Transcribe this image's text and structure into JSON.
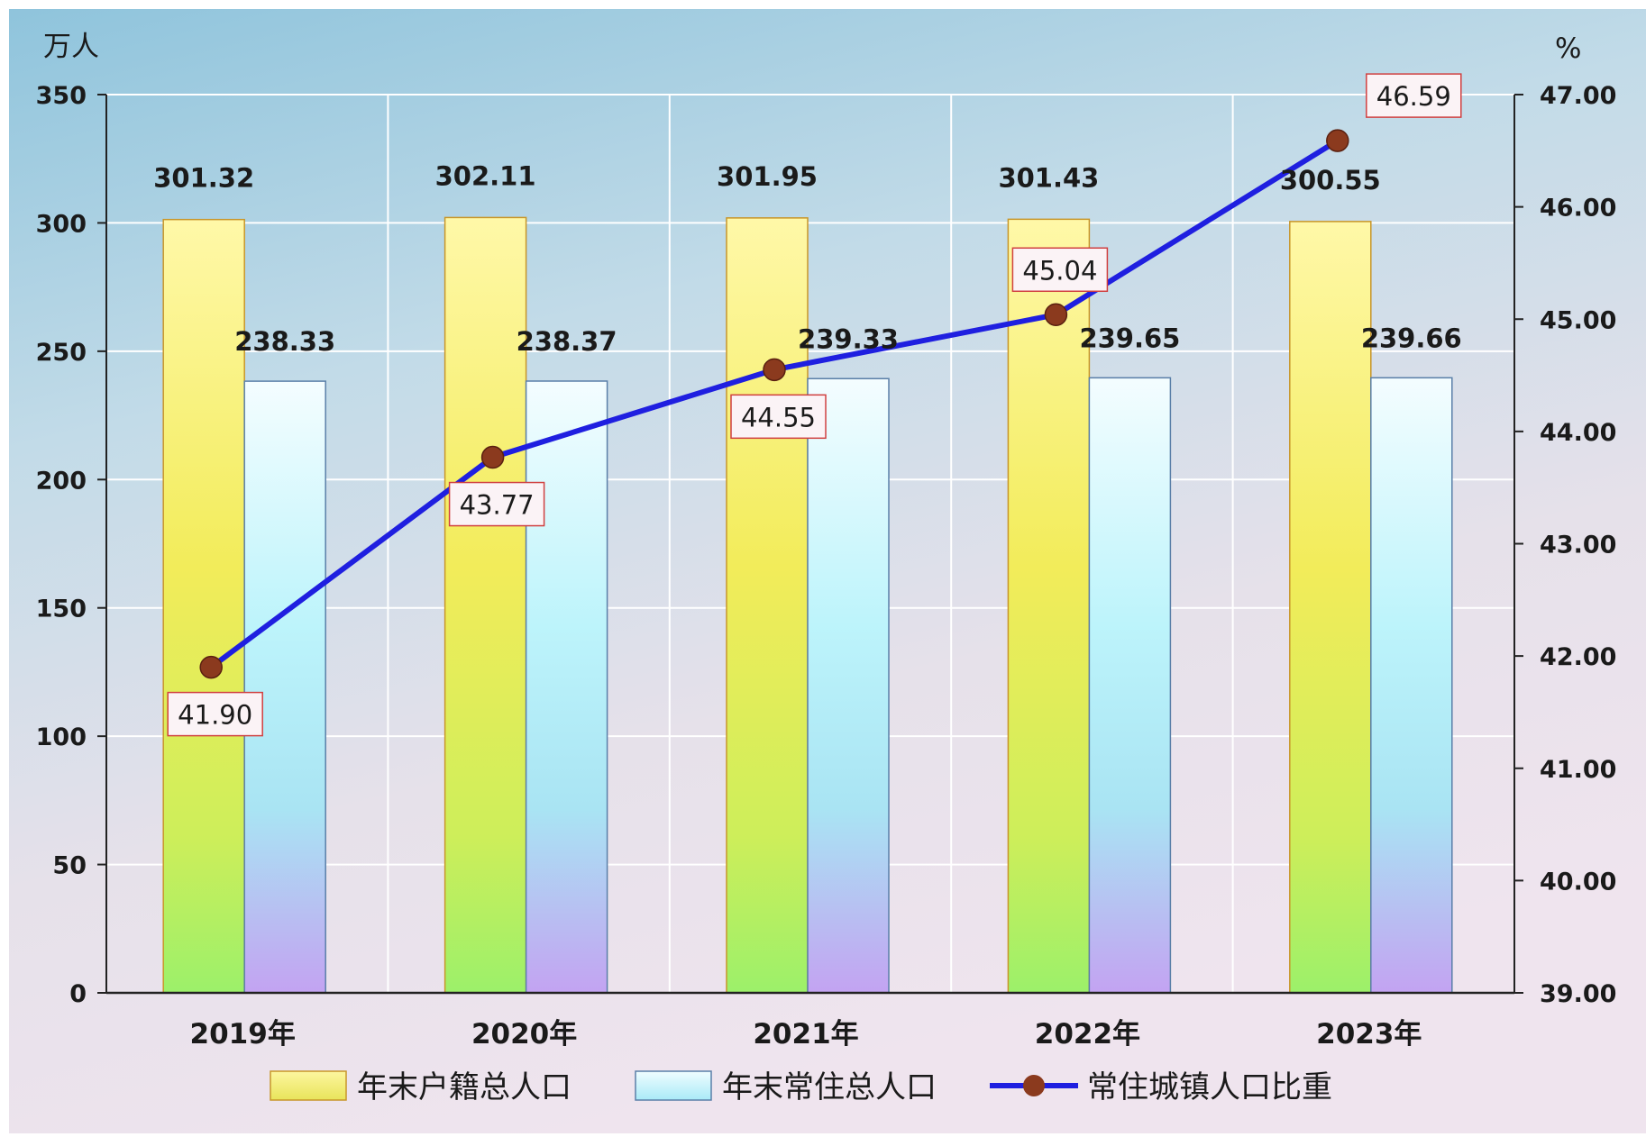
{
  "chart_data": {
    "type": "bar",
    "categories": [
      "2019年",
      "2020年",
      "2021年",
      "2022年",
      "2023年"
    ],
    "series": [
      {
        "name": "年末户籍总人口",
        "kind": "bar",
        "axis": "left",
        "values": [
          301.32,
          302.11,
          301.95,
          301.43,
          300.55
        ],
        "labels": [
          "301.32",
          "302.11",
          "301.95",
          "301.43",
          "300.55"
        ]
      },
      {
        "name": "年末常住总人口",
        "kind": "bar",
        "axis": "left",
        "values": [
          238.33,
          238.37,
          239.33,
          239.65,
          239.66
        ],
        "labels": [
          "238.33",
          "238.37",
          "239.33",
          "239.65",
          "239.66"
        ]
      },
      {
        "name": "常住城镇人口比重",
        "kind": "line",
        "axis": "right",
        "values": [
          41.9,
          43.77,
          44.55,
          45.04,
          46.59
        ],
        "labels": [
          "41.90",
          "43.77",
          "44.55",
          "45.04",
          "46.59"
        ]
      }
    ],
    "ylabel": "万人",
    "y2label": "%",
    "ylim": [
      0,
      350
    ],
    "y2lim": [
      39,
      47
    ],
    "yticks": [
      "0",
      "50",
      "100",
      "150",
      "200",
      "250",
      "300",
      "350"
    ],
    "y2ticks": [
      "39.00",
      "40.00",
      "41.00",
      "42.00",
      "43.00",
      "44.00",
      "45.00",
      "46.00",
      "47.00"
    ],
    "grid": true,
    "legend_position": "bottom"
  },
  "colors": {
    "line": "#1f1fe0",
    "marker": "#8b3a1e",
    "bar1_border": "#c8962a",
    "bar2_border": "#5a7fa8",
    "label_box_border": "#d04040",
    "grid": "#ffffff"
  }
}
